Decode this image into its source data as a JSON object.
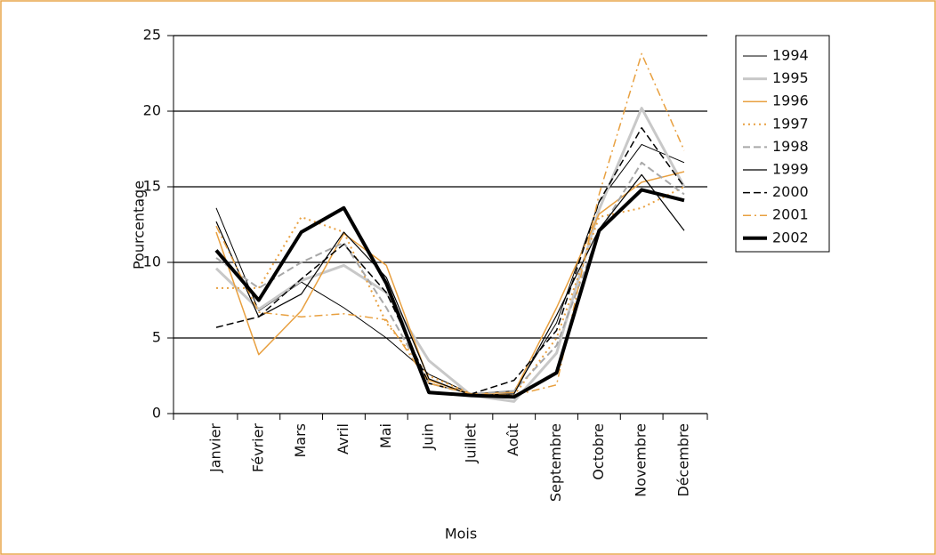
{
  "chart_data": {
    "type": "line",
    "x_label": "Mois",
    "y_label": "Pourcentage",
    "categories": [
      "Janvier",
      "Février",
      "Mars",
      "Avril",
      "Mai",
      "Juin",
      "Juillet",
      "Août",
      "Septembre",
      "Octobre",
      "Novembre",
      "Décembre"
    ],
    "ylim": [
      0,
      25
    ],
    "yticks": [
      0,
      5,
      10,
      15,
      20,
      25
    ],
    "grid": true,
    "legend": "right",
    "series": [
      {
        "name": "1994",
        "color": "#000000",
        "width": 1,
        "dash": "solid",
        "values": [
          13.6,
          6.8,
          8.7,
          7.0,
          5.0,
          2.6,
          1.3,
          1.5,
          6.0,
          14.0,
          17.8,
          16.6
        ]
      },
      {
        "name": "1995",
        "color": "#c8c8c8",
        "width": 3,
        "dash": "solid",
        "values": [
          9.6,
          6.9,
          8.8,
          9.8,
          8.0,
          3.5,
          1.2,
          0.8,
          4.0,
          13.5,
          20.2,
          15.0
        ]
      },
      {
        "name": "1996",
        "color": "#e8a040",
        "width": 1.5,
        "dash": "solid",
        "values": [
          12.0,
          3.9,
          6.8,
          11.9,
          9.8,
          2.2,
          1.3,
          1.4,
          7.0,
          13.2,
          15.3,
          16.0
        ]
      },
      {
        "name": "1997",
        "color": "#e8a040",
        "width": 2,
        "dash": "dotted",
        "values": [
          8.3,
          8.3,
          13.0,
          12.0,
          6.0,
          2.5,
          1.3,
          1.2,
          5.0,
          13.0,
          13.6,
          15.0
        ]
      },
      {
        "name": "1998",
        "color": "#a8a8a8",
        "width": 2,
        "dash": "dashed",
        "values": [
          10.3,
          8.3,
          10.0,
          11.3,
          7.0,
          2.0,
          1.3,
          1.5,
          4.5,
          12.0,
          16.6,
          14.5
        ]
      },
      {
        "name": "1999",
        "color": "#000000",
        "width": 1.2,
        "dash": "solid",
        "values": [
          12.7,
          6.4,
          7.9,
          12.0,
          9.0,
          2.3,
          1.2,
          1.3,
          6.5,
          12.2,
          15.8,
          12.1
        ]
      },
      {
        "name": "2000",
        "color": "#000000",
        "width": 1.5,
        "dash": "dashed",
        "values": [
          5.7,
          6.4,
          8.9,
          11.2,
          8.0,
          2.0,
          1.3,
          2.2,
          5.5,
          14.0,
          18.9,
          15.0
        ]
      },
      {
        "name": "2001",
        "color": "#e8a040",
        "width": 1.5,
        "dash": "dashdot",
        "values": [
          12.4,
          6.7,
          6.4,
          6.6,
          6.2,
          2.0,
          1.3,
          1.2,
          1.9,
          14.5,
          23.8,
          17.4
        ]
      },
      {
        "name": "2002",
        "color": "#000000",
        "width": 4,
        "dash": "solid",
        "values": [
          10.8,
          7.5,
          12.0,
          13.6,
          8.6,
          1.4,
          1.2,
          1.1,
          2.7,
          12.1,
          14.8,
          14.1
        ]
      }
    ]
  }
}
